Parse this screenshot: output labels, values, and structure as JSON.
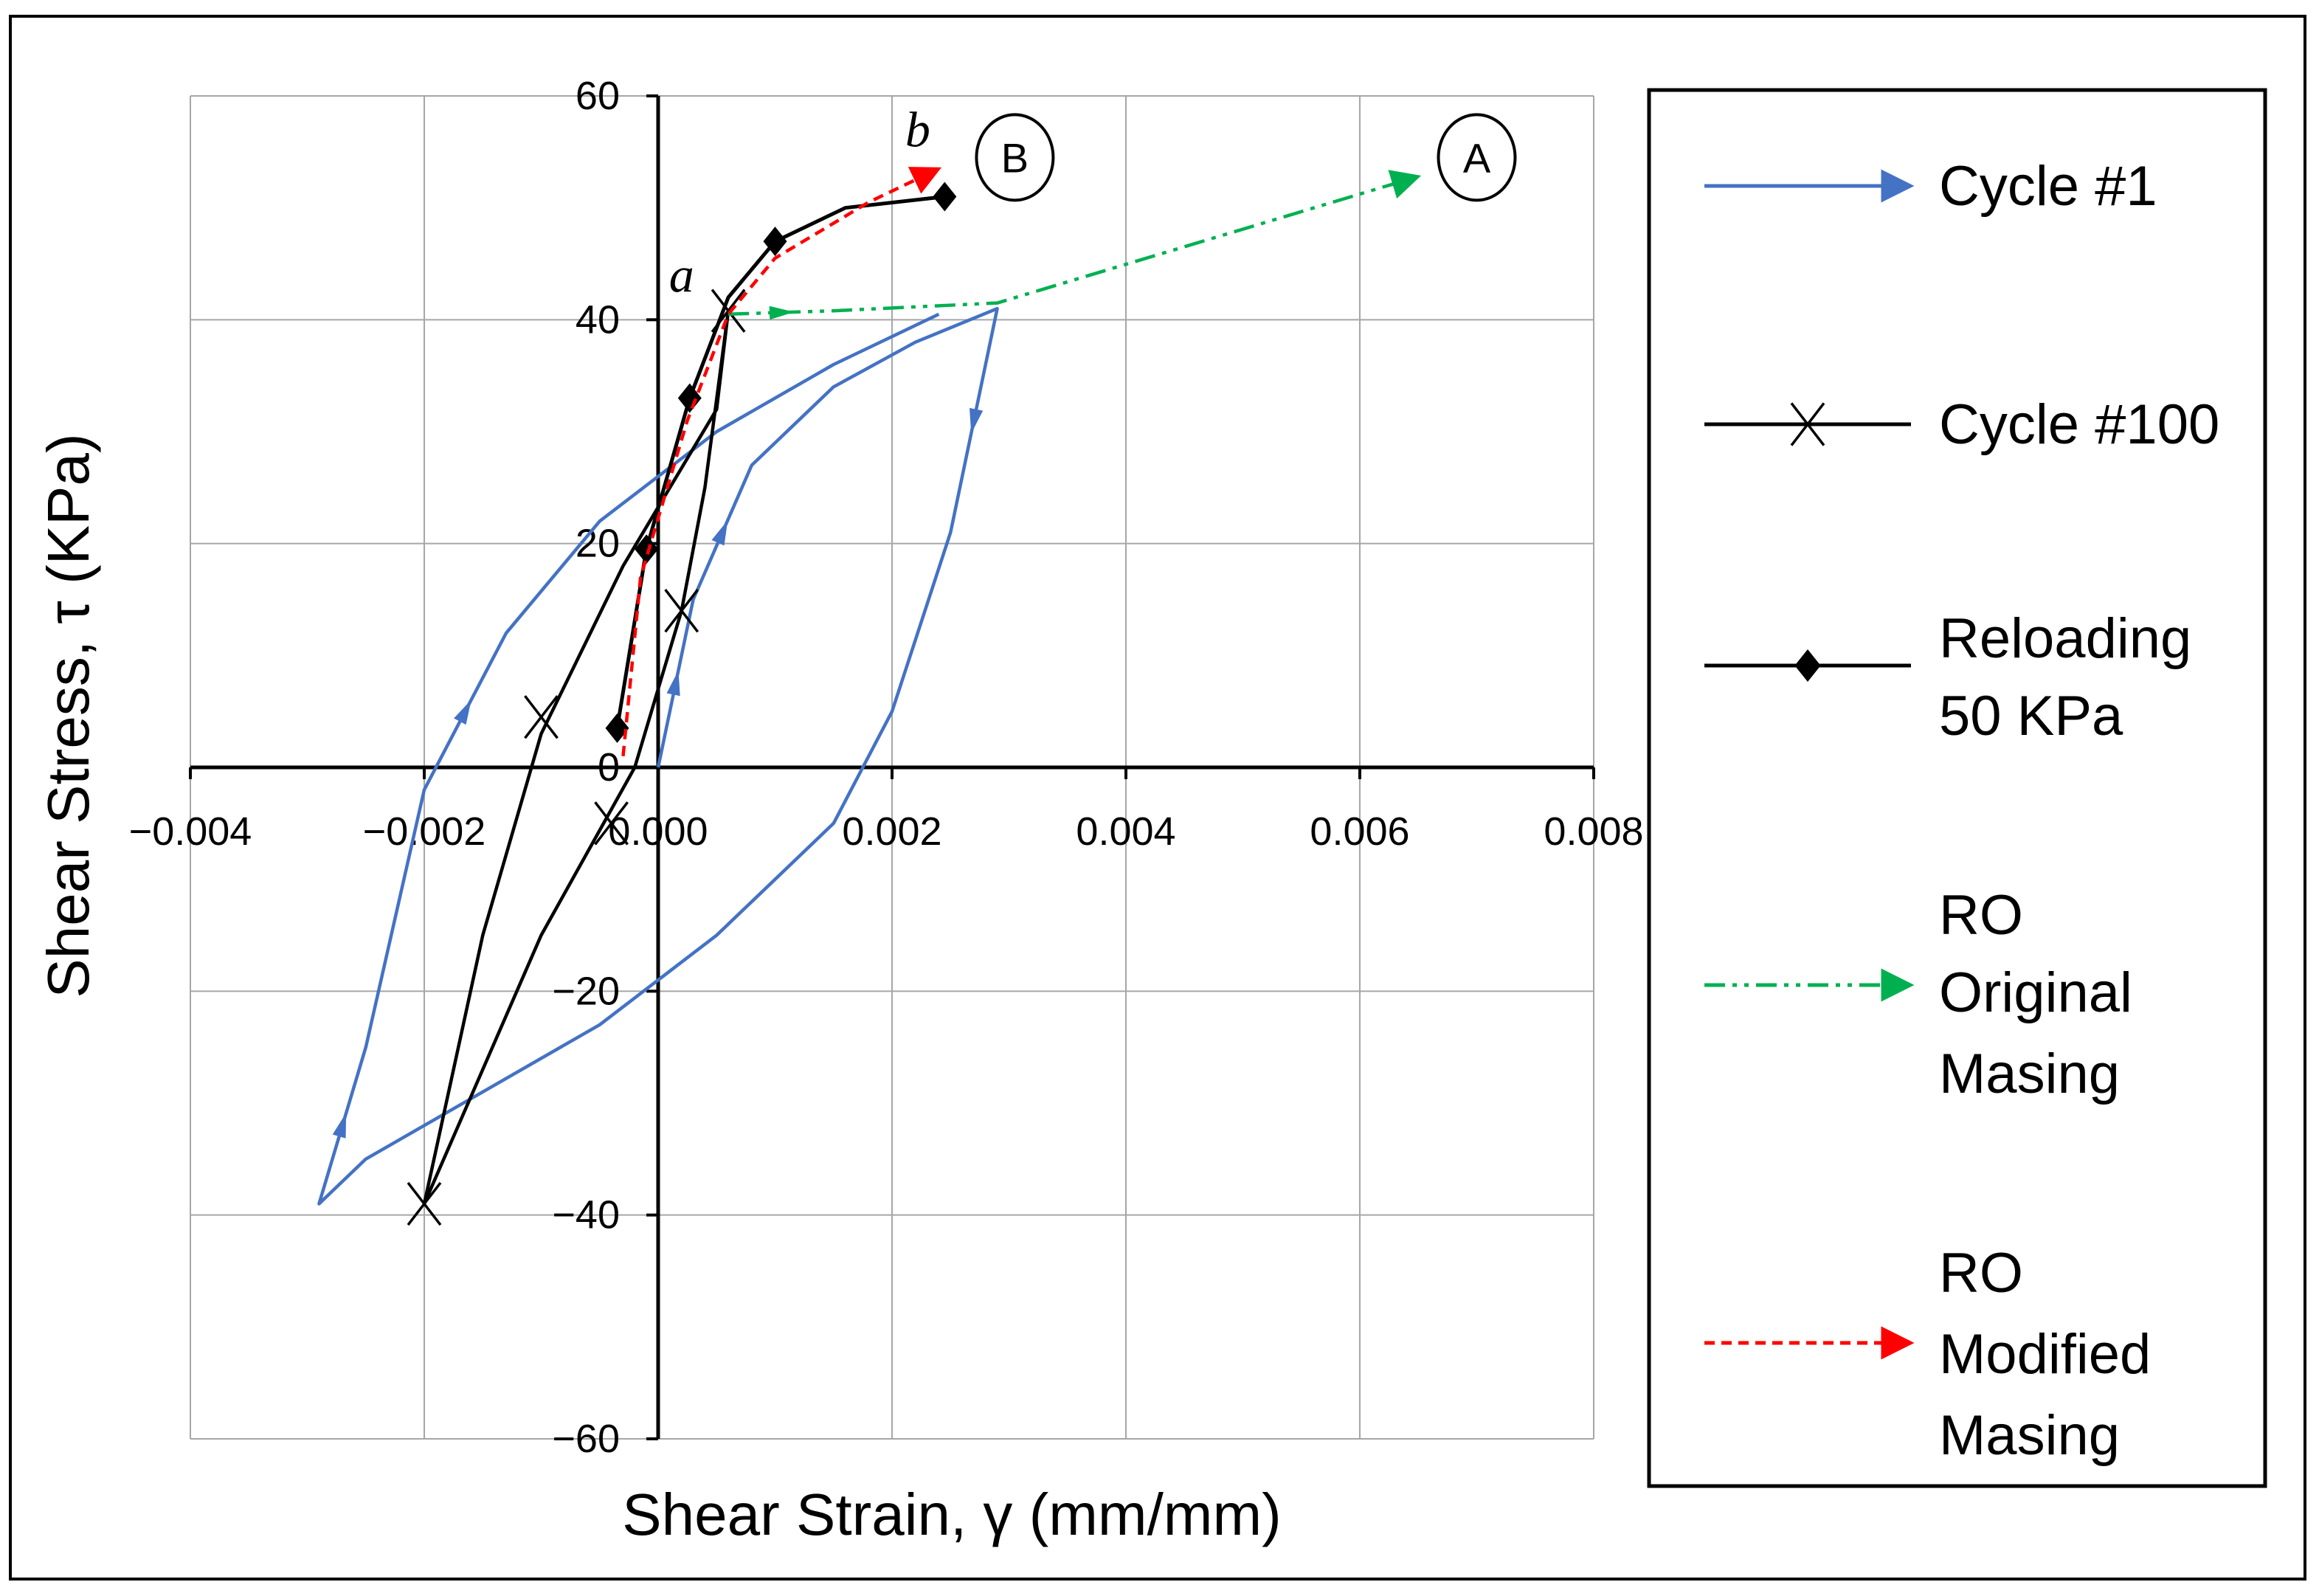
{
  "chart_data": {
    "type": "line",
    "xlabel": "Shear Strain, γ (mm/mm)",
    "ylabel": "Shear Stress, τ (KPa)",
    "xlim": [
      -0.004,
      0.008
    ],
    "ylim": [
      -60,
      60
    ],
    "grid": true,
    "legend_position": "right",
    "x_ticks": [
      -0.004,
      -0.002,
      0.0,
      0.002,
      0.004,
      0.006,
      0.008
    ],
    "x_tick_labels": [
      "−0.004",
      "−0.002",
      "0.000",
      "0.002",
      "0.004",
      "0.006",
      "0.008"
    ],
    "y_ticks": [
      -60,
      -40,
      -20,
      0,
      20,
      40,
      60
    ],
    "y_tick_labels": [
      "−60",
      "−40",
      "−20",
      "0",
      "20",
      "40",
      "60"
    ],
    "series": [
      {
        "name": "Cycle #1",
        "color": "#4472C4",
        "style": "solid-arrows",
        "x": [
          0.0,
          0.0003,
          0.0008,
          0.0015,
          0.0022,
          0.0029,
          0.0025,
          0.002,
          0.0015,
          0.0005,
          -0.0005,
          -0.0015,
          -0.0025,
          -0.0029,
          -0.0025,
          -0.002,
          -0.0013,
          -0.0005,
          0.0005,
          0.0015,
          0.0024
        ],
        "y": [
          0,
          15,
          27,
          34,
          38,
          41,
          21,
          5,
          -5,
          -15,
          -23,
          -29,
          -35,
          -39,
          -25,
          -2,
          12,
          22,
          30,
          36,
          40.5
        ]
      },
      {
        "name": "Cycle #100",
        "color": "#000000",
        "style": "solid-x",
        "x": [
          0.0006,
          0.0004,
          0.0002,
          -0.0002,
          -0.001,
          -0.002,
          -0.0015,
          -0.001,
          -0.0003,
          0.0005,
          0.0006
        ],
        "y": [
          40.8,
          25,
          14,
          0,
          -15,
          -39,
          -15,
          3,
          18,
          32,
          40.8
        ],
        "markers_x": [
          0.0006,
          0.0002,
          -0.0004,
          -0.002,
          -0.001
        ],
        "markers_y": [
          40.8,
          14,
          -5,
          -39,
          4.5
        ]
      },
      {
        "name": "Reloading 50 KPa",
        "color": "#000000",
        "style": "solid-diamond",
        "x": [
          -0.00035,
          -0.0001,
          0.00027,
          0.0006,
          0.001,
          0.0016,
          0.00245
        ],
        "y": [
          3.5,
          19.5,
          33,
          42,
          47,
          50,
          51
        ]
      },
      {
        "name": "RO Original Masing",
        "color": "#00B050",
        "style": "dash-dot-dot",
        "x": [
          0.0006,
          0.0015,
          0.0029,
          0.0065
        ],
        "y": [
          40.5,
          40.8,
          41.5,
          52.8
        ]
      },
      {
        "name": "RO Modified Masing",
        "color": "#FF0000",
        "style": "dashed",
        "x": [
          -0.0003,
          -0.00015,
          0.00025,
          0.0006,
          0.001,
          0.0018,
          0.0024
        ],
        "y": [
          1,
          17,
          31,
          40.5,
          45.5,
          50.5,
          53.5
        ]
      }
    ],
    "annotations": [
      {
        "text": "A",
        "x": 0.007,
        "y": 54.5,
        "circled": true
      },
      {
        "text": "B",
        "x": 0.00305,
        "y": 54.5,
        "circled": true
      },
      {
        "text": "a",
        "x": 0.0002,
        "y": 42.5,
        "italic": true
      },
      {
        "text": "b",
        "x": 0.00222,
        "y": 55.5,
        "italic": true
      }
    ],
    "legend": [
      {
        "label_lines": [
          "Cycle #1"
        ],
        "series": "Cycle #1"
      },
      {
        "label_lines": [
          "Cycle #100"
        ],
        "series": "Cycle #100"
      },
      {
        "label_lines": [
          "Reloading",
          "50 KPa"
        ],
        "series": "Reloading 50 KPa"
      },
      {
        "label_lines": [
          "RO",
          "Original",
          "Masing"
        ],
        "series": "RO Original Masing"
      },
      {
        "label_lines": [
          "RO",
          "Modified",
          "Masing"
        ],
        "series": "RO Modified Masing"
      }
    ]
  }
}
